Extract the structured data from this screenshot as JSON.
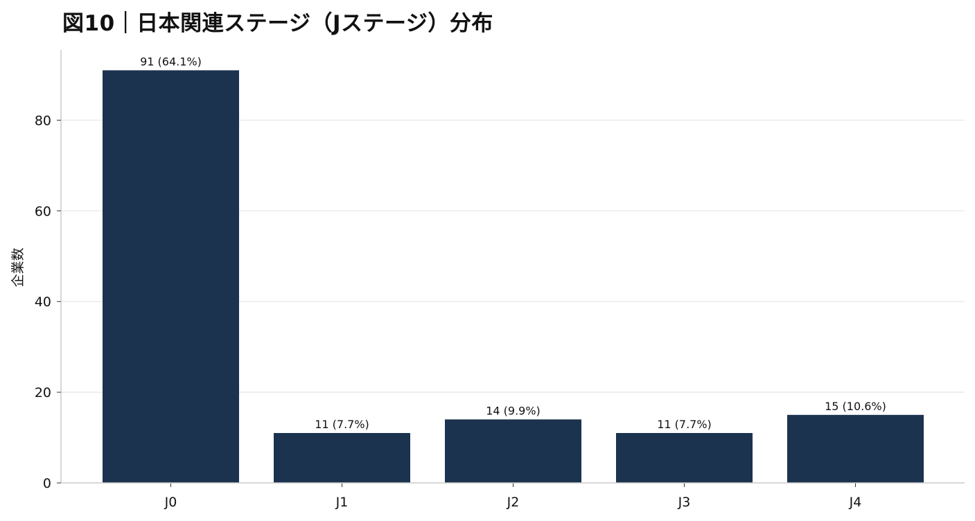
{
  "chart_data": {
    "type": "bar",
    "title": "図10｜日本関連ステージ（Jステージ）分布",
    "xlabel": "",
    "ylabel": "企業数",
    "categories": [
      "J0",
      "J1",
      "J2",
      "J3",
      "J4"
    ],
    "values": [
      91,
      11,
      14,
      11,
      15
    ],
    "data_labels": [
      "91 (64.1%)",
      "11 (7.7%)",
      "14 (9.9%)",
      "11 (7.7%)",
      "15 (10.6%)"
    ],
    "y_ticks": [
      0,
      20,
      40,
      60,
      80
    ],
    "ylim": [
      0,
      95.5
    ],
    "grid": "y",
    "legend": "none",
    "colors": {
      "bar": "#1b334e",
      "grid": "#e6e6e6",
      "axis": "#cccccc"
    }
  }
}
